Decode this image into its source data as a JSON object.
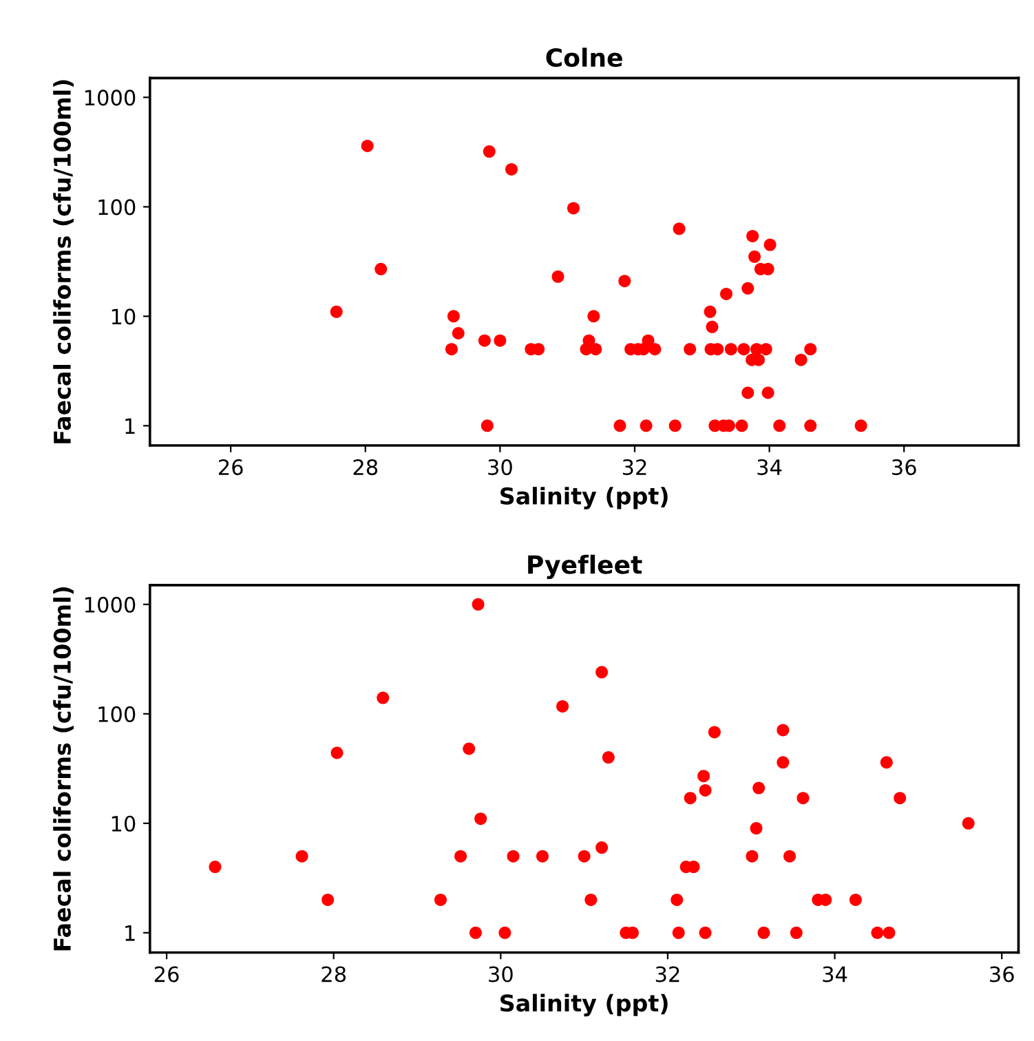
{
  "chart_data": [
    {
      "type": "scatter",
      "title": "Colne",
      "xlabel": "Salinity (ppt)",
      "ylabel": "Faecal coliforms (cfu/100ml)",
      "log": "y",
      "xlim": [
        24.8,
        37.7
      ],
      "xticks": [
        26,
        28,
        30,
        32,
        34,
        36
      ],
      "ylim": [
        0.66,
        1500
      ],
      "yticks": [
        1,
        10,
        100,
        1000
      ],
      "grid": false,
      "legend": false,
      "marker": "circle",
      "series": [
        {
          "color": "#ff0000",
          "x": [
            27.57,
            28.03,
            28.23,
            29.28,
            29.31,
            29.38,
            29.77,
            29.81,
            29.84,
            30.0,
            30.17,
            30.46,
            30.57,
            30.86,
            31.09,
            31.28,
            31.32,
            31.39,
            31.42,
            31.78,
            31.85,
            31.94,
            32.05,
            32.13,
            32.17,
            32.2,
            32.3,
            32.6,
            32.66,
            32.82,
            33.12,
            33.13,
            33.15,
            33.19,
            33.23,
            33.32,
            33.36,
            33.4,
            33.43,
            33.59,
            33.62,
            33.68,
            33.68,
            33.74,
            33.75,
            33.78,
            33.81,
            33.84,
            33.87,
            33.95,
            33.98,
            33.98,
            34.01,
            34.15,
            34.47,
            34.61,
            34.61,
            35.36
          ],
          "values": [
            11,
            360,
            27,
            5,
            10,
            7,
            6,
            1,
            320,
            6,
            220,
            5,
            5,
            23,
            97,
            5,
            6,
            10,
            5,
            1,
            21,
            5,
            5,
            5,
            1,
            6,
            5,
            1,
            63,
            5,
            11,
            5,
            8,
            1,
            5,
            1,
            16,
            1,
            5,
            1,
            5,
            18,
            2,
            4,
            54,
            35,
            5,
            4,
            27,
            5,
            27,
            2,
            45,
            1,
            4,
            5,
            1,
            1
          ]
        }
      ]
    },
    {
      "type": "scatter",
      "title": "Pyefleet",
      "xlabel": "Salinity (ppt)",
      "ylabel": "Faecal coliforms (cfu/100ml)",
      "log": "y",
      "xlim": [
        25.8,
        36.2
      ],
      "xticks": [
        26,
        28,
        30,
        32,
        34,
        36
      ],
      "ylim": [
        0.66,
        1500
      ],
      "yticks": [
        1,
        10,
        100,
        1000
      ],
      "grid": false,
      "legend": false,
      "marker": "circle",
      "series": [
        {
          "color": "#ff0000",
          "x": [
            26.58,
            27.62,
            27.93,
            28.04,
            28.59,
            29.28,
            29.52,
            29.62,
            29.7,
            29.73,
            29.76,
            30.05,
            30.15,
            30.5,
            30.74,
            31.0,
            31.08,
            31.21,
            31.21,
            31.29,
            31.5,
            31.58,
            32.11,
            32.13,
            32.22,
            32.31,
            32.27,
            32.43,
            32.45,
            32.45,
            32.56,
            33.01,
            33.06,
            33.09,
            33.15,
            33.38,
            33.38,
            33.46,
            33.54,
            33.62,
            33.8,
            33.89,
            34.25,
            34.51,
            34.62,
            34.65,
            34.78,
            35.6
          ],
          "values": [
            4,
            5,
            2,
            44,
            140,
            2,
            5,
            48,
            1,
            1000,
            11,
            1,
            5,
            5,
            117,
            5,
            2,
            240,
            6,
            40,
            1,
            1,
            2,
            1,
            4,
            4,
            17,
            27,
            20,
            1,
            68,
            5,
            9,
            21,
            1,
            71,
            36,
            5,
            1,
            17,
            2,
            2,
            2,
            1,
            36,
            1,
            17,
            10
          ]
        }
      ]
    }
  ]
}
